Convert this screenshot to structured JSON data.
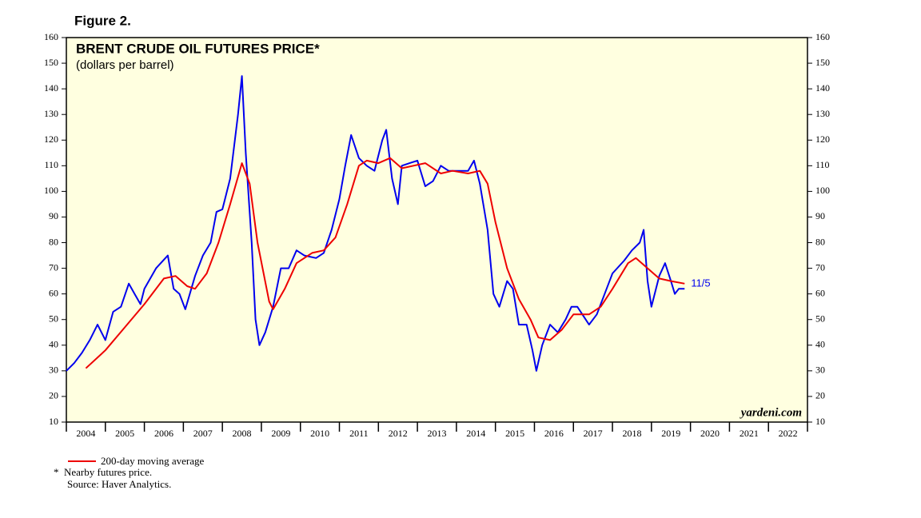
{
  "chart_data": {
    "type": "line",
    "figure_label": "Figure 2.",
    "title": "BRENT CRUDE OIL FUTURES PRICE*",
    "subtitle": "(dollars per barrel)",
    "watermark": "yardeni.com",
    "annotation": "11/5",
    "notes": [
      "*  Nearby futures price.",
      "Source: Haver Analytics."
    ],
    "xlim": [
      2004,
      2023
    ],
    "xticks": [
      {
        "value": 2004.5,
        "label": "2004"
      },
      {
        "value": 2005.5,
        "label": "2005"
      },
      {
        "value": 2006.5,
        "label": "2006"
      },
      {
        "value": 2007.5,
        "label": "2007"
      },
      {
        "value": 2008.5,
        "label": "2008"
      },
      {
        "value": 2009.5,
        "label": "2009"
      },
      {
        "value": 2010.5,
        "label": "2010"
      },
      {
        "value": 2011.5,
        "label": "2011"
      },
      {
        "value": 2012.5,
        "label": "2012"
      },
      {
        "value": 2013.5,
        "label": "2013"
      },
      {
        "value": 2014.5,
        "label": "2014"
      },
      {
        "value": 2015.5,
        "label": "2015"
      },
      {
        "value": 2016.5,
        "label": "2016"
      },
      {
        "value": 2017.5,
        "label": "2017"
      },
      {
        "value": 2018.5,
        "label": "2018"
      },
      {
        "value": 2019.5,
        "label": "2019"
      },
      {
        "value": 2020.5,
        "label": "2020"
      },
      {
        "value": 2021.5,
        "label": "2021"
      },
      {
        "value": 2022.5,
        "label": "2022"
      }
    ],
    "ylim": [
      10,
      160
    ],
    "yticks": [
      10,
      20,
      30,
      40,
      50,
      60,
      70,
      80,
      90,
      100,
      110,
      120,
      130,
      140,
      150,
      160
    ],
    "background": "#ffffe0",
    "series": [
      {
        "color": "#0000ee",
        "x": [
          2004.0,
          2004.2,
          2004.4,
          2004.6,
          2004.8,
          2005.0,
          2005.2,
          2005.4,
          2005.6,
          2005.75,
          2005.9,
          2006.0,
          2006.3,
          2006.6,
          2006.75,
          2006.9,
          2007.05,
          2007.3,
          2007.5,
          2007.7,
          2007.85,
          2008.0,
          2008.2,
          2008.4,
          2008.5,
          2008.6,
          2008.75,
          2008.85,
          2008.95,
          2009.1,
          2009.3,
          2009.5,
          2009.7,
          2009.9,
          2010.1,
          2010.4,
          2010.6,
          2010.8,
          2011.0,
          2011.15,
          2011.3,
          2011.5,
          2011.7,
          2011.9,
          2012.1,
          2012.2,
          2012.35,
          2012.5,
          2012.6,
          2012.8,
          2013.0,
          2013.2,
          2013.4,
          2013.6,
          2013.8,
          2014.0,
          2014.3,
          2014.45,
          2014.6,
          2014.8,
          2014.95,
          2015.1,
          2015.3,
          2015.45,
          2015.6,
          2015.8,
          2015.95,
          2016.05,
          2016.2,
          2016.4,
          2016.6,
          2016.8,
          2016.95,
          2017.1,
          2017.4,
          2017.6,
          2017.8,
          2018.0,
          2018.3,
          2018.5,
          2018.7,
          2018.8,
          2018.9,
          2019.0,
          2019.2,
          2019.35,
          2019.5,
          2019.6,
          2019.7,
          2019.85
        ],
        "values": [
          30,
          33,
          37,
          42,
          48,
          42,
          53,
          55,
          64,
          60,
          56,
          62,
          70,
          75,
          62,
          60,
          54,
          67,
          75,
          80,
          92,
          93,
          105,
          130,
          145,
          115,
          80,
          50,
          40,
          45,
          55,
          70,
          70,
          77,
          75,
          74,
          76,
          85,
          97,
          110,
          122,
          113,
          110,
          108,
          120,
          124,
          105,
          95,
          110,
          111,
          112,
          102,
          104,
          110,
          108,
          108,
          108,
          112,
          103,
          85,
          60,
          55,
          65,
          62,
          48,
          48,
          38,
          30,
          40,
          48,
          45,
          50,
          55,
          55,
          48,
          52,
          60,
          68,
          73,
          77,
          80,
          85,
          65,
          55,
          67,
          72,
          65,
          60,
          62,
          62
        ]
      },
      {
        "name": "200-day moving average",
        "color": "#ee0000",
        "x": [
          2004.5,
          2005.0,
          2005.5,
          2006.0,
          2006.5,
          2006.8,
          2007.1,
          2007.3,
          2007.6,
          2007.9,
          2008.2,
          2008.5,
          2008.7,
          2008.9,
          2009.2,
          2009.3,
          2009.6,
          2009.9,
          2010.3,
          2010.6,
          2010.9,
          2011.2,
          2011.5,
          2011.7,
          2012.0,
          2012.3,
          2012.6,
          2012.9,
          2013.2,
          2013.6,
          2013.9,
          2014.3,
          2014.6,
          2014.8,
          2015.0,
          2015.3,
          2015.6,
          2015.9,
          2016.1,
          2016.4,
          2016.7,
          2017.0,
          2017.4,
          2017.7,
          2018.0,
          2018.4,
          2018.6,
          2018.9,
          2019.2,
          2019.5,
          2019.85
        ],
        "values": [
          31,
          38,
          47,
          56,
          66,
          67,
          63,
          62,
          68,
          80,
          95,
          111,
          103,
          80,
          57,
          54,
          62,
          72,
          76,
          77,
          82,
          95,
          110,
          112,
          111,
          113,
          109,
          110,
          111,
          107,
          108,
          107,
          108,
          103,
          88,
          70,
          58,
          50,
          43,
          42,
          46,
          52,
          52,
          55,
          62,
          72,
          74,
          70,
          66,
          65,
          64
        ]
      }
    ]
  }
}
